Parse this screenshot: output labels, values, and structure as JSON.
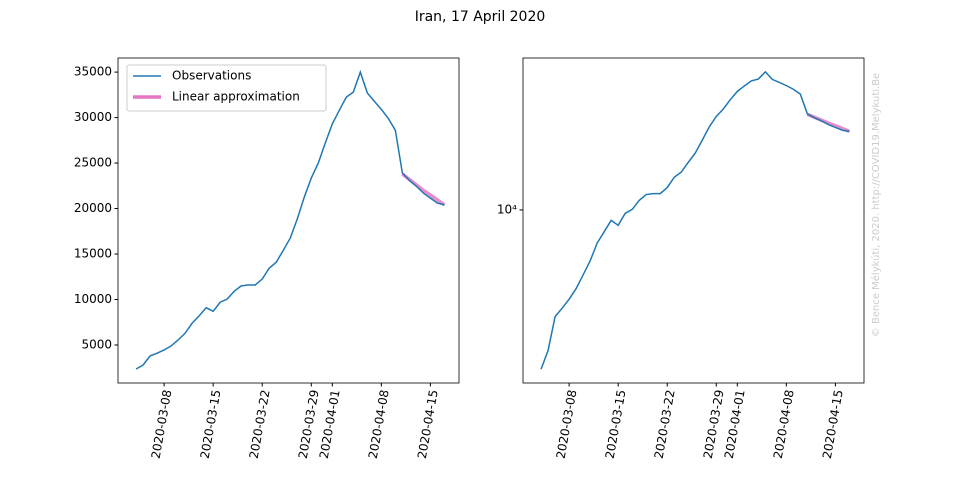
{
  "title": "Iran, 17 April 2020",
  "watermark": "© Bence Mélykúti, 2020. http://COVID19.Melykuti.Be",
  "chart_data": [
    {
      "type": "line",
      "x": [
        "2020-03-04",
        "2020-03-05",
        "2020-03-06",
        "2020-03-07",
        "2020-03-08",
        "2020-03-09",
        "2020-03-10",
        "2020-03-11",
        "2020-03-12",
        "2020-03-13",
        "2020-03-14",
        "2020-03-15",
        "2020-03-16",
        "2020-03-17",
        "2020-03-18",
        "2020-03-19",
        "2020-03-20",
        "2020-03-21",
        "2020-03-22",
        "2020-03-23",
        "2020-03-24",
        "2020-03-25",
        "2020-03-26",
        "2020-03-27",
        "2020-03-28",
        "2020-03-29",
        "2020-03-30",
        "2020-03-31",
        "2020-04-01",
        "2020-04-02",
        "2020-04-03",
        "2020-04-04",
        "2020-04-05",
        "2020-04-06",
        "2020-04-07",
        "2020-04-08",
        "2020-04-09",
        "2020-04-10",
        "2020-04-11",
        "2020-04-12",
        "2020-04-13",
        "2020-04-14",
        "2020-04-15",
        "2020-04-16",
        "2020-04-17"
      ],
      "series": [
        {
          "name": "Observations",
          "color": "#1f77b4",
          "values": [
            2360,
            2800,
            3800,
            4100,
            4450,
            4900,
            5550,
            6300,
            7400,
            8200,
            9100,
            8700,
            9700,
            10050,
            10900,
            11500,
            11600,
            11600,
            12250,
            13450,
            14100,
            15400,
            16750,
            18850,
            21250,
            23350,
            25000,
            27200,
            29300,
            30800,
            32250,
            32800,
            35000,
            32700,
            31800,
            30900,
            29900,
            28600,
            23900,
            23100,
            22450,
            21700,
            21150,
            20600,
            20400
          ]
        },
        {
          "name": "Linear approximation",
          "color": "#e377c2",
          "values": [
            null,
            null,
            null,
            null,
            null,
            null,
            null,
            null,
            null,
            null,
            null,
            null,
            null,
            null,
            null,
            null,
            null,
            null,
            null,
            null,
            null,
            null,
            null,
            null,
            null,
            null,
            null,
            null,
            null,
            null,
            null,
            null,
            null,
            null,
            null,
            null,
            null,
            null,
            23800,
            23200,
            22600,
            22000,
            21500,
            20950,
            20400
          ]
        }
      ],
      "xlim": [
        "2020-03-01T10:00",
        "2020-04-19T02:00"
      ],
      "xticks": [
        "2020-03-08",
        "2020-03-15",
        "2020-03-22",
        "2020-03-29",
        "2020-04-01",
        "2020-04-08",
        "2020-04-15"
      ],
      "ylim": [
        820,
        36550
      ],
      "yticks": [
        5000,
        10000,
        15000,
        20000,
        25000,
        30000,
        35000
      ],
      "legend": "upper left"
    },
    {
      "type": "line",
      "x": [
        "2020-03-04",
        "2020-03-05",
        "2020-03-06",
        "2020-03-07",
        "2020-03-08",
        "2020-03-09",
        "2020-03-10",
        "2020-03-11",
        "2020-03-12",
        "2020-03-13",
        "2020-03-14",
        "2020-03-15",
        "2020-03-16",
        "2020-03-17",
        "2020-03-18",
        "2020-03-19",
        "2020-03-20",
        "2020-03-21",
        "2020-03-22",
        "2020-03-23",
        "2020-03-24",
        "2020-03-25",
        "2020-03-26",
        "2020-03-27",
        "2020-03-28",
        "2020-03-29",
        "2020-03-30",
        "2020-03-31",
        "2020-04-01",
        "2020-04-02",
        "2020-04-03",
        "2020-04-04",
        "2020-04-05",
        "2020-04-06",
        "2020-04-07",
        "2020-04-08",
        "2020-04-09",
        "2020-04-10",
        "2020-04-11",
        "2020-04-12",
        "2020-04-13",
        "2020-04-14",
        "2020-04-15",
        "2020-04-16",
        "2020-04-17"
      ],
      "series": [
        {
          "name": "Observations",
          "color": "#1f77b4",
          "values": [
            2360,
            2800,
            3800,
            4100,
            4450,
            4900,
            5550,
            6300,
            7400,
            8200,
            9100,
            8700,
            9700,
            10050,
            10900,
            11500,
            11600,
            11600,
            12250,
            13450,
            14100,
            15400,
            16750,
            18850,
            21250,
            23350,
            25000,
            27200,
            29300,
            30800,
            32250,
            32800,
            35000,
            32700,
            31800,
            30900,
            29900,
            28600,
            23900,
            23100,
            22450,
            21700,
            21150,
            20600,
            20400
          ]
        },
        {
          "name": "Linear approximation",
          "color": "#e377c2",
          "values": [
            null,
            null,
            null,
            null,
            null,
            null,
            null,
            null,
            null,
            null,
            null,
            null,
            null,
            null,
            null,
            null,
            null,
            null,
            null,
            null,
            null,
            null,
            null,
            null,
            null,
            null,
            null,
            null,
            null,
            null,
            null,
            null,
            null,
            null,
            null,
            null,
            null,
            null,
            23800,
            23200,
            22600,
            22000,
            21500,
            20950,
            20400
          ]
        }
      ],
      "xlim": [
        "2020-03-01T10:00",
        "2020-04-19T02:00"
      ],
      "xticks": [
        "2020-03-08",
        "2020-03-15",
        "2020-03-22",
        "2020-03-29",
        "2020-04-01",
        "2020-04-08",
        "2020-04-15"
      ],
      "ylim": [
        2080,
        39700
      ],
      "yticks": [
        {
          "value": 10000,
          "label": "10⁴"
        }
      ],
      "yscale": "log"
    }
  ]
}
